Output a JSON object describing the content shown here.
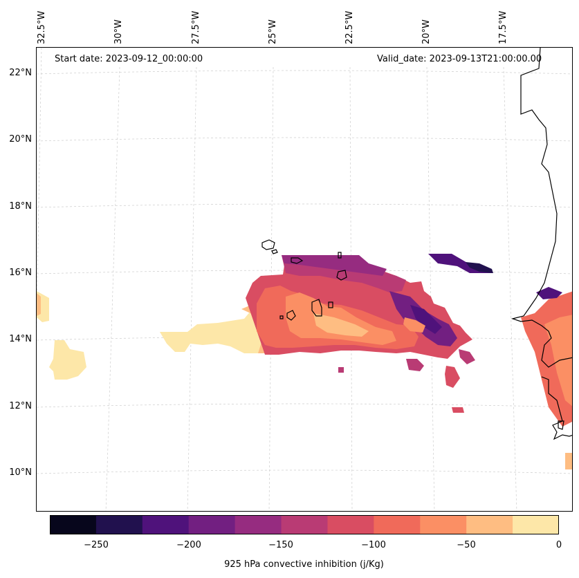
{
  "map": {
    "start_date": "Start date: 2023-09-12_00:00:00",
    "valid_date": "Valid_date: 2023-09-13T21:00:00.00",
    "lon_labels": [
      "32.5°W",
      "30°W",
      "27.5°W",
      "25°W",
      "22.5°W",
      "20°W",
      "17.5°W"
    ],
    "lat_labels": [
      "22°N",
      "20°N",
      "18°N",
      "16°N",
      "14°N",
      "12°N",
      "10°N"
    ]
  },
  "colorbar": {
    "title": "925 hPa convective inhibition (j/Kg)",
    "tick_labels": [
      "−250",
      "−200",
      "−150",
      "−100",
      "−50",
      "0"
    ],
    "levels": [
      -275,
      -250,
      -225,
      -200,
      -175,
      -150,
      -125,
      -100,
      -75,
      -50,
      -25,
      0
    ],
    "colors": [
      "#07061c",
      "#21114e",
      "#4f127b",
      "#721f81",
      "#962c80",
      "#b93b74",
      "#d94d62",
      "#f06a5a",
      "#fb8f64",
      "#febd82",
      "#fde7a8"
    ]
  },
  "colors": {
    "coastline": "#000000",
    "gridline": "#cccccc"
  }
}
